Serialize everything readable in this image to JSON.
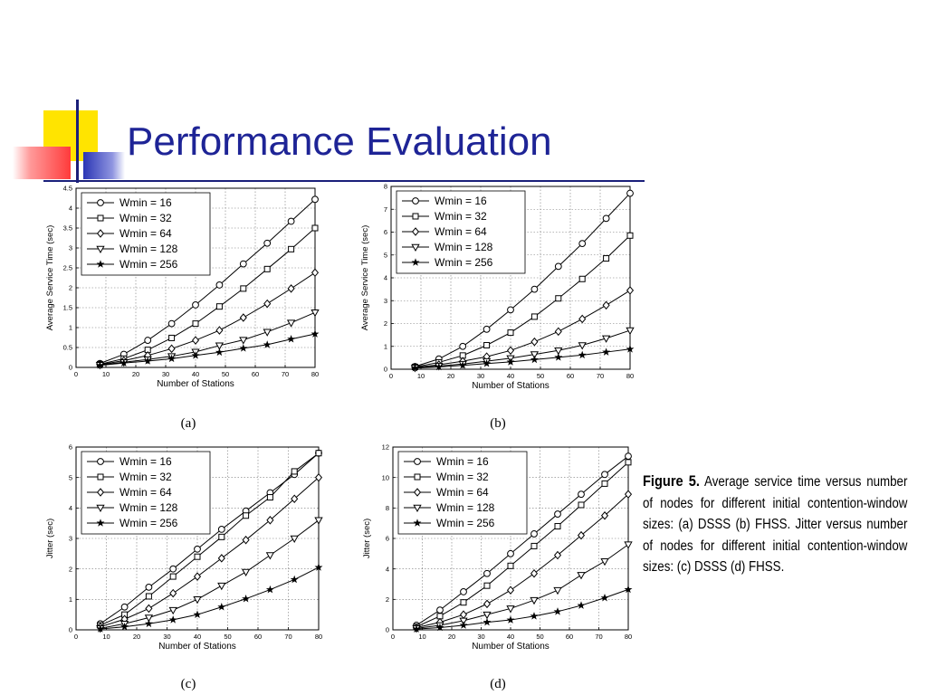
{
  "slide": {
    "title": "Performance Evaluation"
  },
  "caption": {
    "head": "Figure 5.",
    "body": "Average service time versus number of nodes for different initial contention-window sizes: (a) DSSS (b) FHSS. Jitter versus number of nodes for different initial contention-window sizes: (c) DSSS (d) FHSS."
  },
  "chart_data": [
    {
      "id": "a",
      "label": "(a)",
      "type": "line",
      "xlabel": "Number of Stations",
      "ylabel": "Average Service Time (sec)",
      "xlim": [
        0,
        80
      ],
      "ylim": [
        0,
        4.5
      ],
      "xticks": [
        0,
        10,
        20,
        30,
        40,
        50,
        60,
        70,
        80
      ],
      "yticks": [
        0,
        0.5,
        1,
        1.5,
        2,
        2.5,
        3,
        3.5,
        4,
        4.5
      ],
      "grid": true,
      "legend": "top-left",
      "x": [
        8,
        16,
        24,
        32,
        40,
        48,
        56,
        64,
        72,
        80
      ],
      "series": [
        {
          "name": "Wmin = 16",
          "marker": "circle",
          "values": [
            0.1,
            0.33,
            0.68,
            1.1,
            1.57,
            2.07,
            2.6,
            3.12,
            3.67,
            4.22
          ]
        },
        {
          "name": "Wmin = 32",
          "marker": "square",
          "values": [
            0.08,
            0.22,
            0.44,
            0.74,
            1.1,
            1.53,
            1.98,
            2.47,
            2.97,
            3.5
          ]
        },
        {
          "name": "Wmin = 64",
          "marker": "diamond",
          "values": [
            0.07,
            0.17,
            0.3,
            0.47,
            0.68,
            0.93,
            1.25,
            1.6,
            1.98,
            2.38
          ]
        },
        {
          "name": "Wmin = 128",
          "marker": "triangle-down",
          "values": [
            0.06,
            0.13,
            0.2,
            0.28,
            0.39,
            0.55,
            0.69,
            0.89,
            1.12,
            1.38
          ]
        },
        {
          "name": "Wmin = 256",
          "marker": "star",
          "values": [
            0.05,
            0.11,
            0.16,
            0.22,
            0.3,
            0.38,
            0.48,
            0.57,
            0.71,
            0.84
          ]
        }
      ]
    },
    {
      "id": "b",
      "label": "(b)",
      "type": "line",
      "xlabel": "Number of Stations",
      "ylabel": "Average Service Time (sec)",
      "xlim": [
        0,
        80
      ],
      "ylim": [
        0,
        8
      ],
      "xticks": [
        0,
        10,
        20,
        30,
        40,
        50,
        60,
        70,
        80
      ],
      "yticks": [
        0,
        1,
        2,
        3,
        4,
        5,
        6,
        7,
        8
      ],
      "grid": true,
      "legend": "top-left",
      "x": [
        8,
        16,
        24,
        32,
        40,
        48,
        56,
        64,
        72,
        80
      ],
      "series": [
        {
          "name": "Wmin = 16",
          "marker": "circle",
          "values": [
            0.12,
            0.45,
            1.0,
            1.75,
            2.6,
            3.5,
            4.5,
            5.5,
            6.6,
            7.7
          ]
        },
        {
          "name": "Wmin = 32",
          "marker": "square",
          "values": [
            0.1,
            0.3,
            0.6,
            1.05,
            1.6,
            2.3,
            3.1,
            3.95,
            4.85,
            5.85
          ]
        },
        {
          "name": "Wmin = 64",
          "marker": "diamond",
          "values": [
            0.08,
            0.2,
            0.35,
            0.55,
            0.82,
            1.2,
            1.65,
            2.2,
            2.8,
            3.45
          ]
        },
        {
          "name": "Wmin = 128",
          "marker": "triangle-down",
          "values": [
            0.06,
            0.14,
            0.23,
            0.35,
            0.48,
            0.65,
            0.82,
            1.05,
            1.35,
            1.7
          ]
        },
        {
          "name": "Wmin = 256",
          "marker": "star",
          "values": [
            0.05,
            0.1,
            0.17,
            0.25,
            0.32,
            0.42,
            0.52,
            0.62,
            0.75,
            0.88
          ]
        }
      ]
    },
    {
      "id": "c",
      "label": "(c)",
      "type": "line",
      "xlabel": "Number of Stations",
      "ylabel": "Jitter (sec)",
      "xlim": [
        0,
        80
      ],
      "ylim": [
        0,
        6
      ],
      "xticks": [
        0,
        10,
        20,
        30,
        40,
        50,
        60,
        70,
        80
      ],
      "yticks": [
        0,
        1,
        2,
        3,
        4,
        5,
        6
      ],
      "grid": true,
      "legend": "top-left",
      "x": [
        8,
        16,
        24,
        32,
        40,
        48,
        56,
        64,
        72,
        80
      ],
      "series": [
        {
          "name": "Wmin = 16",
          "marker": "circle",
          "values": [
            0.2,
            0.75,
            1.4,
            2.0,
            2.65,
            3.3,
            3.9,
            4.5,
            5.1,
            5.8
          ]
        },
        {
          "name": "Wmin = 32",
          "marker": "square",
          "values": [
            0.15,
            0.5,
            1.1,
            1.75,
            2.4,
            3.05,
            3.75,
            4.35,
            5.2,
            5.8
          ]
        },
        {
          "name": "Wmin = 64",
          "marker": "diamond",
          "values": [
            0.1,
            0.35,
            0.7,
            1.2,
            1.75,
            2.35,
            2.95,
            3.6,
            4.3,
            5.0
          ]
        },
        {
          "name": "Wmin = 128",
          "marker": "triangle-down",
          "values": [
            0.05,
            0.2,
            0.4,
            0.65,
            1.0,
            1.45,
            1.9,
            2.45,
            3.0,
            3.6
          ]
        },
        {
          "name": "Wmin = 256",
          "marker": "star",
          "values": [
            0.03,
            0.1,
            0.2,
            0.33,
            0.5,
            0.75,
            1.02,
            1.32,
            1.65,
            2.05
          ]
        }
      ]
    },
    {
      "id": "d",
      "label": "(d)",
      "type": "line",
      "xlabel": "Number of Stations",
      "ylabel": "Jitter (sec)",
      "xlim": [
        0,
        80
      ],
      "ylim": [
        0,
        12
      ],
      "xticks": [
        0,
        10,
        20,
        30,
        40,
        50,
        60,
        70,
        80
      ],
      "yticks": [
        0,
        2,
        4,
        6,
        8,
        10,
        12
      ],
      "grid": true,
      "legend": "top-left",
      "x": [
        8,
        16,
        24,
        32,
        40,
        48,
        56,
        64,
        72,
        80
      ],
      "series": [
        {
          "name": "Wmin = 16",
          "marker": "circle",
          "values": [
            0.3,
            1.3,
            2.5,
            3.7,
            5.0,
            6.3,
            7.6,
            8.9,
            10.2,
            11.4
          ]
        },
        {
          "name": "Wmin = 32",
          "marker": "square",
          "values": [
            0.2,
            0.9,
            1.8,
            2.9,
            4.2,
            5.5,
            6.8,
            8.2,
            9.6,
            11.0
          ]
        },
        {
          "name": "Wmin = 64",
          "marker": "diamond",
          "values": [
            0.15,
            0.5,
            1.0,
            1.7,
            2.6,
            3.7,
            4.9,
            6.2,
            7.5,
            8.9
          ]
        },
        {
          "name": "Wmin = 128",
          "marker": "triangle-down",
          "values": [
            0.1,
            0.3,
            0.6,
            1.0,
            1.4,
            1.95,
            2.6,
            3.6,
            4.5,
            5.6
          ]
        },
        {
          "name": "Wmin = 256",
          "marker": "star",
          "values": [
            0.05,
            0.15,
            0.3,
            0.5,
            0.65,
            0.9,
            1.2,
            1.6,
            2.1,
            2.65
          ]
        }
      ]
    }
  ]
}
